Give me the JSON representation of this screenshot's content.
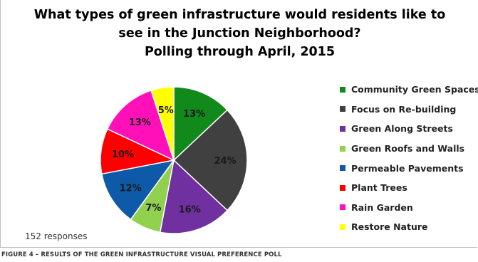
{
  "chart_data": {
    "type": "pie",
    "title_lines": [
      "What types of green infrastructure would residents like to",
      "see in the Junction Neighborhood?",
      "Polling through April, 2015"
    ],
    "slices": [
      {
        "label": "Community Green Spaces",
        "value": 13,
        "display": "13%",
        "color": "#12891b"
      },
      {
        "label": "Focus on Re-building",
        "value": 24,
        "display": "24%",
        "color": "#404040"
      },
      {
        "label": "Green Along Streets",
        "value": 16,
        "display": "16%",
        "color": "#7030a0"
      },
      {
        "label": "Green Roofs and Walls",
        "value": 7,
        "display": "7%",
        "color": "#92d050"
      },
      {
        "label": "Permeable Pavements",
        "value": 12,
        "display": "12%",
        "color": "#0f5aa8"
      },
      {
        "label": "Plant Trees",
        "value": 10,
        "display": "10%",
        "color": "#ff0000"
      },
      {
        "label": "Rain Garden",
        "value": 13,
        "display": "13%",
        "color": "#ff10b8"
      },
      {
        "label": "Restore Nature",
        "value": 5,
        "display": "5%",
        "color": "#ffff00"
      }
    ],
    "legend_position": "right"
  },
  "responses_note": "152 responses",
  "figure_caption": "FIGURE 4 – RESULTS OF THE GREEN INFRASTRUCTURE VISUAL PREFERENCE POLL"
}
